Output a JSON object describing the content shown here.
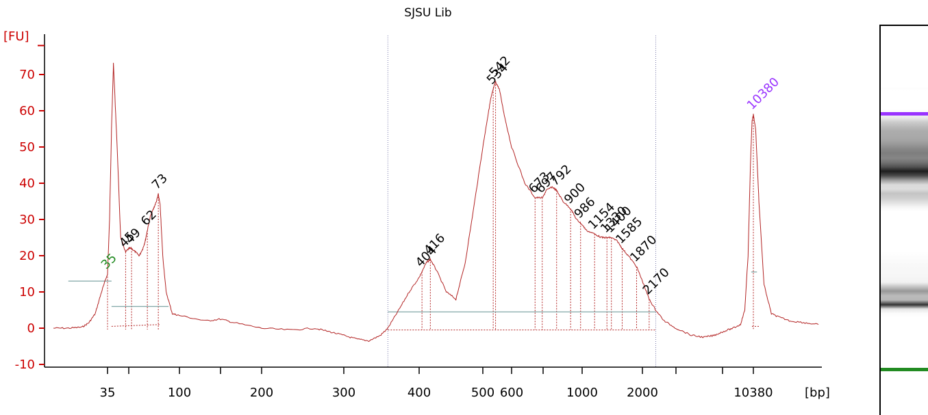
{
  "chart_data": {
    "type": "line",
    "title": "SJSU Lib",
    "ylabel": "[FU]",
    "xlabel": "[bp]",
    "ylim": [
      -10,
      78
    ],
    "yticks": [
      -10,
      0,
      10,
      20,
      30,
      40,
      50,
      60,
      70
    ],
    "ytick_labels": [
      "-10",
      "0",
      "10",
      "20",
      "30",
      "40",
      "50",
      "60",
      "70"
    ],
    "xticks": [
      {
        "pos": 35,
        "label": "35"
      },
      {
        "pos": 47,
        "label": ""
      },
      {
        "pos": 100,
        "label": "100"
      },
      {
        "pos": 150,
        "label": ""
      },
      {
        "pos": 200,
        "label": "200"
      },
      {
        "pos": 300,
        "label": "300"
      },
      {
        "pos": 400,
        "label": "400"
      },
      {
        "pos": 500,
        "label": "500"
      },
      {
        "pos": 600,
        "label": "600"
      },
      {
        "pos": 700,
        "label": ""
      },
      {
        "pos": 1000,
        "label": "1000"
      },
      {
        "pos": 2000,
        "label": "2000"
      },
      {
        "pos": 3000,
        "label": ""
      },
      {
        "pos": 7000,
        "label": ""
      },
      {
        "pos": 10380,
        "label": "10380"
      }
    ],
    "series": [
      {
        "x": [
          27,
          29,
          31,
          32,
          33,
          34,
          35,
          36,
          37,
          38,
          40,
          42,
          45,
          47,
          49,
          52,
          55,
          58,
          60,
          62,
          65,
          68,
          71,
          73,
          75,
          78,
          82,
          90,
          100,
          130,
          150,
          165,
          200,
          230,
          260,
          280,
          300,
          315,
          330,
          345,
          355,
          370,
          385,
          400,
          410,
          416,
          425,
          440,
          455,
          470,
          485,
          500,
          515,
          525,
          534,
          542,
          555,
          575,
          600,
          640,
          673,
          697,
          720,
          760,
          792,
          840,
          900,
          950,
          986,
          1050,
          1154,
          1250,
          1330,
          1400,
          1500,
          1585,
          1700,
          1870,
          2000,
          2170,
          2350,
          2600,
          3000,
          4000,
          5000,
          6000,
          7000,
          8000,
          8800,
          9300,
          9700,
          10000,
          10200,
          10380,
          10550,
          10800,
          11200,
          11800,
          12500,
          13500,
          15000,
          16500
        ],
        "y": [
          0,
          0,
          0.3,
          1.5,
          4,
          10,
          15,
          30,
          55,
          73,
          50,
          25,
          21,
          22,
          22,
          21,
          20,
          22,
          24,
          27,
          31,
          33,
          35,
          37,
          34,
          20,
          10,
          4,
          3.5,
          2,
          2.5,
          1.5,
          0,
          -0.5,
          0,
          -1,
          -2,
          -3,
          -3.5,
          -2,
          0,
          5,
          10,
          14,
          18,
          19,
          16,
          10,
          8,
          18,
          34,
          50,
          58,
          63,
          66,
          68,
          66,
          58,
          50,
          40,
          36,
          36,
          38,
          39,
          38,
          35,
          33,
          30,
          29,
          27,
          26,
          25,
          25,
          25,
          24,
          22,
          20,
          17,
          13,
          8,
          5,
          2,
          0,
          -2,
          -2.5,
          -2,
          -1,
          0,
          1,
          5,
          20,
          45,
          57,
          59,
          55,
          35,
          12,
          4,
          3,
          2,
          1.5,
          1
        ]
      }
    ],
    "peaks": [
      {
        "x": 35,
        "label": "35",
        "kind": "marker"
      },
      {
        "x": 45,
        "label": "45",
        "kind": "peak"
      },
      {
        "x": 49,
        "label": "49",
        "kind": "peak"
      },
      {
        "x": 62,
        "label": "62",
        "kind": "peak"
      },
      {
        "x": 73,
        "label": "73",
        "kind": "peak"
      },
      {
        "x": 404,
        "label": "404",
        "kind": "peak"
      },
      {
        "x": 416,
        "label": "416",
        "kind": "peak"
      },
      {
        "x": 534,
        "label": "534",
        "kind": "peak"
      },
      {
        "x": 542,
        "label": "542",
        "kind": "peak"
      },
      {
        "x": 673,
        "label": "673",
        "kind": "peak"
      },
      {
        "x": 697,
        "label": "697",
        "kind": "peak"
      },
      {
        "x": 792,
        "label": "792",
        "kind": "peak"
      },
      {
        "x": 900,
        "label": "900",
        "kind": "peak"
      },
      {
        "x": 986,
        "label": "986",
        "kind": "peak"
      },
      {
        "x": 1154,
        "label": "1154",
        "kind": "peak"
      },
      {
        "x": 1330,
        "label": "1330",
        "kind": "peak"
      },
      {
        "x": 1400,
        "label": "1400",
        "kind": "peak"
      },
      {
        "x": 1585,
        "label": "1585",
        "kind": "peak"
      },
      {
        "x": 1870,
        "label": "1870",
        "kind": "peak"
      },
      {
        "x": 2170,
        "label": "2170",
        "kind": "peak"
      },
      {
        "x": 10380,
        "label": "10380",
        "kind": "upper-marker"
      }
    ],
    "region_bounds": [
      355,
      2350
    ],
    "colors": {
      "trace": "#b22222",
      "axis": "#cc0000",
      "lower_marker": "#228b22",
      "upper_marker": "#9933ff",
      "peak_label": "#000000",
      "baseline": "#5f8f8f",
      "region_line": "#7777aa"
    },
    "grid": false
  }
}
